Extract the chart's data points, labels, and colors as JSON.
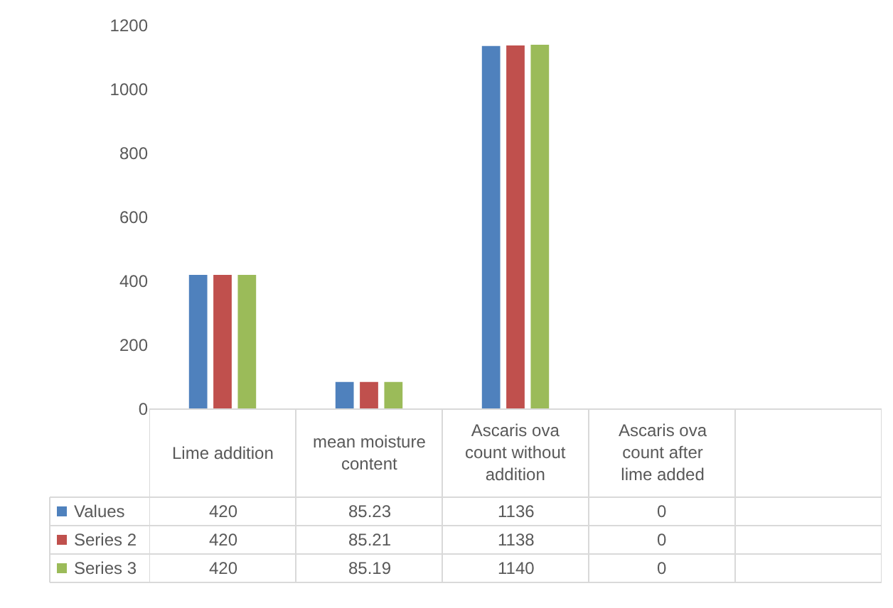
{
  "chart_data": {
    "type": "bar",
    "categories": [
      "Lime addition",
      "mean moisture content",
      "Ascaris ova count without addition",
      "Ascaris ova count after lime added",
      null
    ],
    "series": [
      {
        "name": "Values",
        "color": "#4f81bd",
        "values": [
          420,
          85.23,
          1136,
          0,
          null
        ]
      },
      {
        "name": "Series 2",
        "color": "#c0504d",
        "values": [
          420,
          85.21,
          1138,
          0,
          null
        ]
      },
      {
        "name": "Series 3",
        "color": "#9bbb59",
        "values": [
          420,
          85.19,
          1140,
          0,
          null
        ]
      }
    ],
    "ylim": [
      0,
      1200
    ],
    "yticks": [
      0,
      200,
      400,
      600,
      800,
      1000,
      1200
    ],
    "grid": false,
    "legend": "bottom",
    "data_labels": true
  }
}
